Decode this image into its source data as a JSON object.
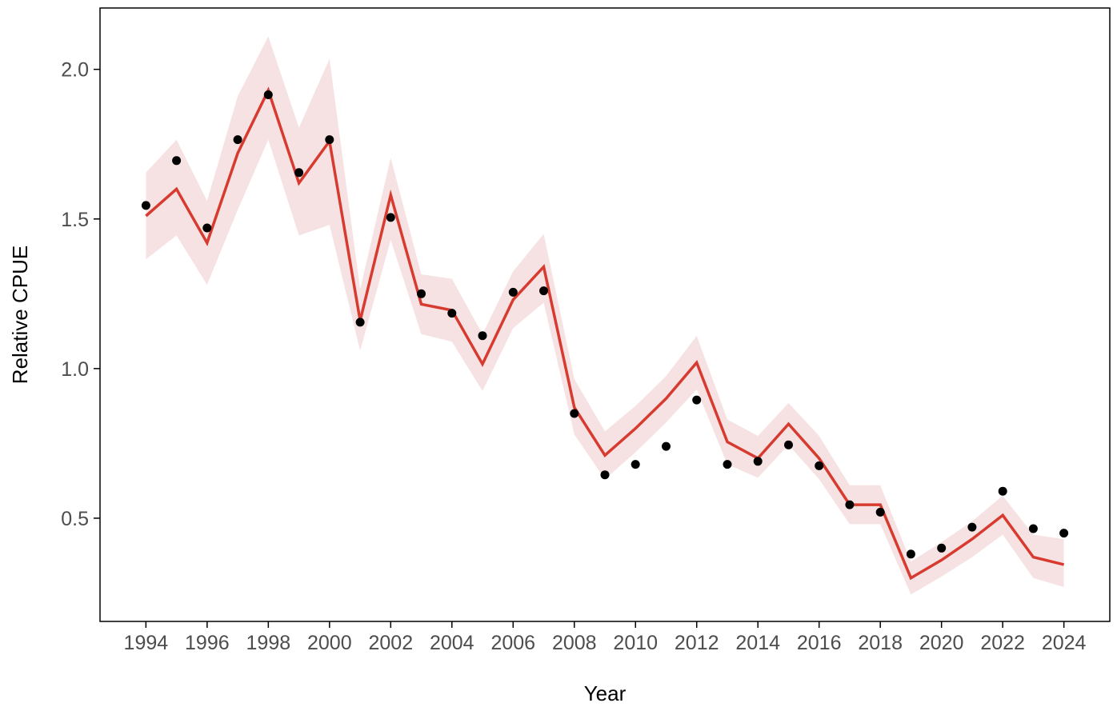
{
  "chart_data": {
    "type": "line",
    "title": "",
    "xlabel": "Year",
    "ylabel": "Relative CPUE",
    "xlim": [
      1992.5,
      2025.5
    ],
    "ylim": [
      0.155,
      2.205
    ],
    "x_ticks": [
      1994,
      1996,
      1998,
      2000,
      2002,
      2004,
      2006,
      2008,
      2010,
      2012,
      2014,
      2016,
      2018,
      2020,
      2022,
      2024
    ],
    "x_tick_labels": [
      "1994",
      "1996",
      "1998",
      "2000",
      "2002",
      "2004",
      "2006",
      "2008",
      "2010",
      "2012",
      "2014",
      "2016",
      "2018",
      "2020",
      "2022",
      "2024"
    ],
    "y_ticks": [
      0.5,
      1.0,
      1.5,
      2.0
    ],
    "y_tick_labels": [
      "0.5",
      "1.0",
      "1.5",
      "2.0"
    ],
    "grid": false,
    "legend": "none",
    "x": [
      1994,
      1995,
      1996,
      1997,
      1998,
      1999,
      2000,
      2001,
      2002,
      2003,
      2004,
      2005,
      2006,
      2007,
      2008,
      2009,
      2010,
      2011,
      2012,
      2013,
      2014,
      2015,
      2016,
      2017,
      2018,
      2019,
      2020,
      2021,
      2022,
      2023,
      2024
    ],
    "observed": [
      1.545,
      1.695,
      1.47,
      1.765,
      1.915,
      1.655,
      1.765,
      1.155,
      1.505,
      1.25,
      1.185,
      1.11,
      1.255,
      1.26,
      0.85,
      0.645,
      0.68,
      0.74,
      0.895,
      0.68,
      0.69,
      0.745,
      0.675,
      0.545,
      0.52,
      0.38,
      0.4,
      0.47,
      0.59,
      0.465,
      0.45
    ],
    "fitted": [
      1.51,
      1.6,
      1.42,
      1.72,
      1.93,
      1.62,
      1.76,
      1.16,
      1.58,
      1.215,
      1.195,
      1.015,
      1.23,
      1.34,
      0.87,
      0.71,
      0.8,
      0.9,
      1.02,
      0.755,
      0.7,
      0.815,
      0.7,
      0.545,
      0.545,
      0.3,
      0.36,
      0.43,
      0.51,
      0.37,
      0.345
    ],
    "ci_lower": [
      1.365,
      1.445,
      1.28,
      1.53,
      1.765,
      1.445,
      1.48,
      1.06,
      1.43,
      1.115,
      1.09,
      0.925,
      1.135,
      1.22,
      0.78,
      0.63,
      0.72,
      0.82,
      0.93,
      0.68,
      0.635,
      0.745,
      0.63,
      0.48,
      0.48,
      0.245,
      0.305,
      0.37,
      0.445,
      0.3,
      0.27
    ],
    "ci_upper": [
      1.655,
      1.765,
      1.56,
      1.91,
      2.11,
      1.805,
      2.035,
      1.265,
      1.705,
      1.315,
      1.3,
      1.115,
      1.325,
      1.45,
      0.965,
      0.79,
      0.875,
      0.975,
      1.11,
      0.83,
      0.775,
      0.885,
      0.775,
      0.61,
      0.61,
      0.355,
      0.42,
      0.49,
      0.575,
      0.445,
      0.43
    ],
    "colors": {
      "line": "#d73b30",
      "band": "#f7e2e3",
      "points": "#000000",
      "axis": "#000000",
      "tick_text": "#4d4d4d"
    }
  }
}
